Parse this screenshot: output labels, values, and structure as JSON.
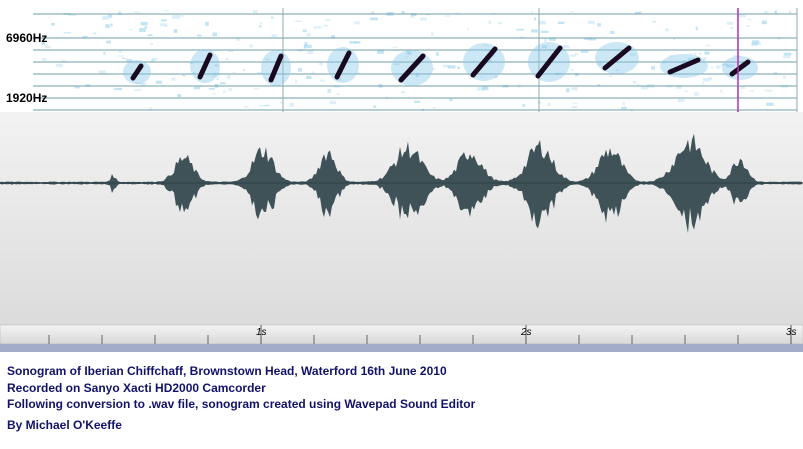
{
  "spectrogram": {
    "freq_labels": [
      "6960Hz",
      "1920Hz"
    ]
  },
  "timeline": {
    "labels": [
      "1s",
      "2s",
      "3s"
    ]
  },
  "caption": {
    "lines": [
      "Sonogram of Iberian Chiffchaff, Brownstown Head, Waterford 16th June 2010",
      "Recorded on Sanyo Xacti HD2000 Camcorder",
      "Following conversion to .wav file, sonogram created using Wavepad Sound Editor"
    ],
    "author": "By Michael O'Keeffe"
  }
}
